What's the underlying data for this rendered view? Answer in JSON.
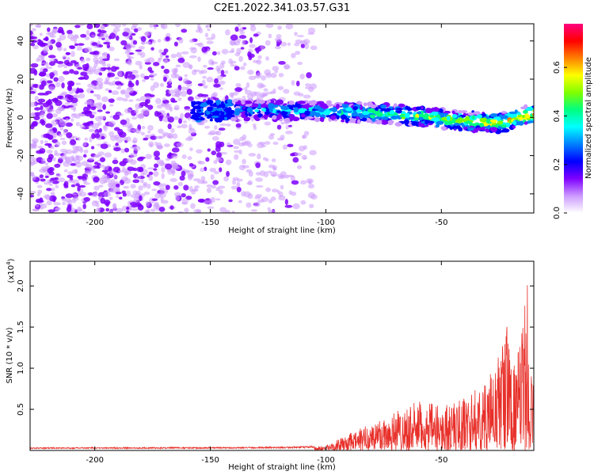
{
  "title": "C2E1.2022.341.03.57.G31",
  "chart_data": [
    {
      "type": "heatmap",
      "xlabel": "Height of straight line (km)",
      "ylabel": "Frequency (Hz)",
      "xlim": [
        -228,
        -10
      ],
      "ylim": [
        -50,
        49
      ],
      "x_ticks": [
        -200,
        -150,
        -100,
        -50
      ],
      "y_ticks": [
        -40,
        -20,
        0,
        20,
        40
      ],
      "colorbar": {
        "label": "Normalized spectral amplitude",
        "ticks": [
          "0.0",
          "0.2",
          "0.4",
          "0.6"
        ],
        "range": [
          0,
          0.78
        ],
        "colors": [
          "#ffffff",
          "#cc99ff",
          "#7f00ff",
          "#0000ff",
          "#0080ff",
          "#00ffff",
          "#00ff80",
          "#80ff00",
          "#ffff00",
          "#ff8000",
          "#ff0000",
          "#ff0080"
        ]
      },
      "ridge": {
        "description_points_x": [
          -155,
          -130,
          -100,
          -75,
          -55,
          -40,
          -25,
          -10
        ],
        "description_points_freq": [
          3,
          4,
          3,
          2,
          0,
          -2,
          -3,
          2
        ]
      }
    },
    {
      "type": "line",
      "xlabel": "Height of straight line (km)",
      "ylabel": "SNR (10 * v/v)",
      "multiplier": "(x10^4)",
      "multiplier_base": "(x10",
      "multiplier_exp": "4",
      "xlim": [
        -228,
        -10
      ],
      "ylim": [
        0,
        2.3
      ],
      "x_ticks": [
        -200,
        -150,
        -100,
        -50
      ],
      "y_ticks": [
        "0.5",
        "1.0",
        "1.5",
        "2.0"
      ],
      "series": [
        {
          "color": "#e8302a",
          "envelope_x": [
            -228,
            -130,
            -110,
            -100,
            -90,
            -80,
            -70,
            -60,
            -50,
            -40,
            -30,
            -25,
            -22,
            -20,
            -18,
            -15,
            -13,
            -12,
            -11,
            -10
          ],
          "envelope_y": [
            0.03,
            0.035,
            0.04,
            0.06,
            0.2,
            0.35,
            0.5,
            0.6,
            0.55,
            0.65,
            0.85,
            1.2,
            1.6,
            1.3,
            1.0,
            1.5,
            2.3,
            1.0,
            1.1,
            0.9
          ]
        }
      ]
    }
  ]
}
